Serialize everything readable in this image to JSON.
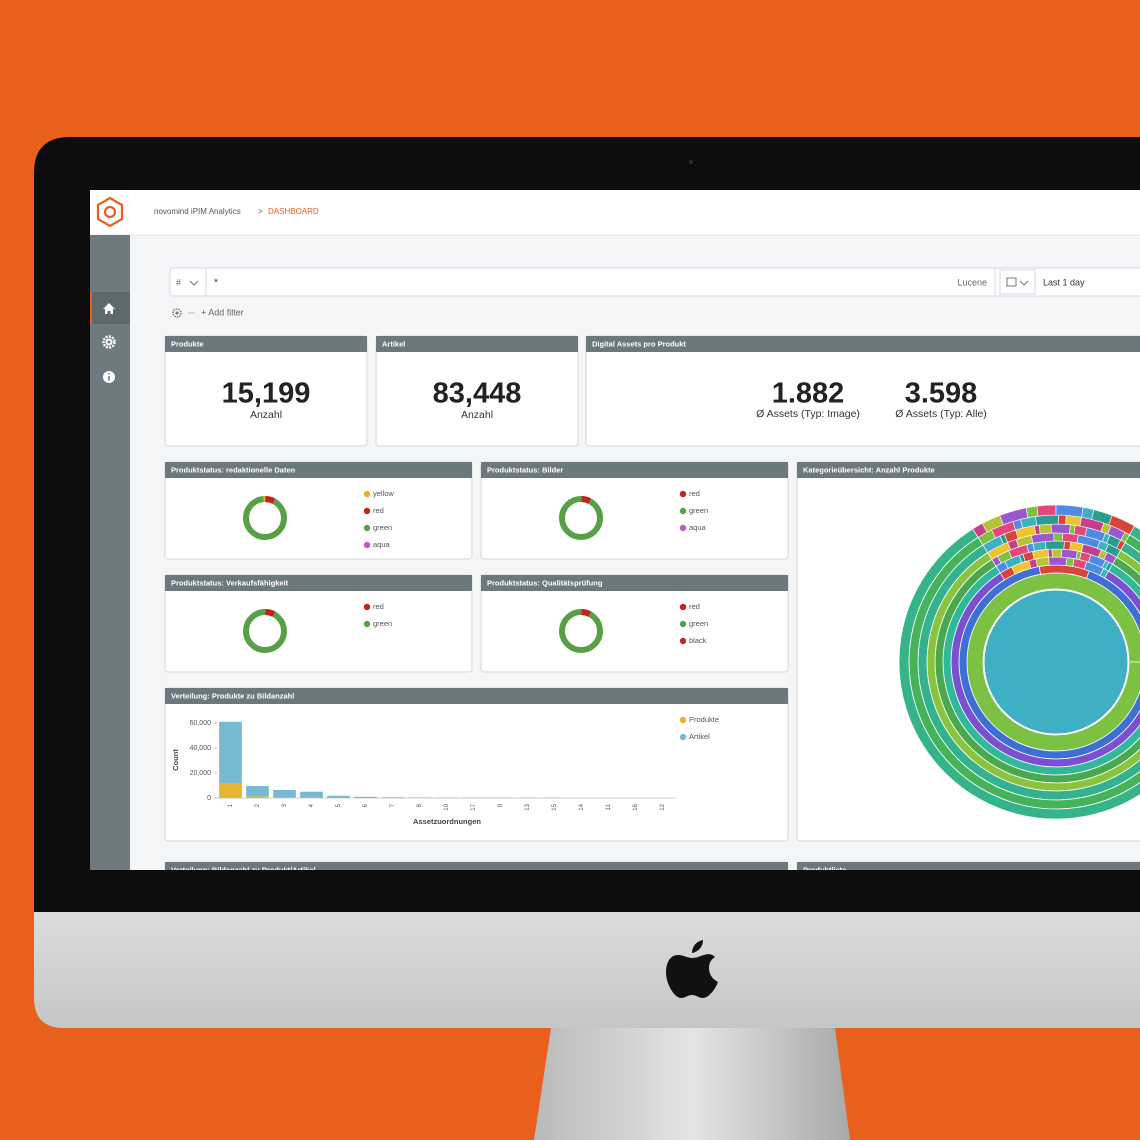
{
  "header": {
    "app": "novomind iPIM Analytics",
    "separator": ">",
    "page": "DASHBOARD"
  },
  "search": {
    "field_type": "#",
    "query": "*",
    "language": "Lucene",
    "time_range": "Last 1 day",
    "add_filter": "+ Add filter"
  },
  "metrics": [
    {
      "title": "Produkte",
      "value": "15,199",
      "label": "Anzahl"
    },
    {
      "title": "Artikel",
      "value": "83,448",
      "label": "Anzahl"
    }
  ],
  "assets": {
    "title": "Digital Assets pro Produkt",
    "metrics": [
      {
        "value": "1.882",
        "label": "Ø Assets (Typ: Image)"
      },
      {
        "value": "3.598",
        "label": "Ø Assets (Typ: Alle)"
      }
    ]
  },
  "status_panels": [
    {
      "title": "Produktstatus: redaktionelle Daten",
      "legend": [
        {
          "label": "yellow",
          "color": "#e6b422"
        },
        {
          "label": "red",
          "color": "#c8201e"
        },
        {
          "label": "green",
          "color": "#58a046"
        },
        {
          "label": "aqua",
          "color": "#c656c9"
        }
      ]
    },
    {
      "title": "Produktstatus: Bilder",
      "legend": [
        {
          "label": "red",
          "color": "#c8201e"
        },
        {
          "label": "green",
          "color": "#58a046"
        },
        {
          "label": "aqua",
          "color": "#c656c9"
        }
      ]
    },
    {
      "title": "Produktstatus: Verkaufsfähigkeit",
      "legend": [
        {
          "label": "red",
          "color": "#c8201e"
        },
        {
          "label": "green",
          "color": "#58a046"
        }
      ]
    },
    {
      "title": "Produktstatus: Qualitätsprüfung",
      "legend": [
        {
          "label": "red",
          "color": "#c8201e"
        },
        {
          "label": "green",
          "color": "#58a046"
        },
        {
          "label": "black",
          "color": "#a83434"
        }
      ]
    }
  ],
  "chart_data": {
    "type": "bar",
    "title": "Verteilung: Produkte zu Bildanzahl",
    "stacked": true,
    "categories": [
      "1",
      "2",
      "3",
      "4",
      "5",
      "6",
      "7",
      "8",
      "10",
      "17",
      "9",
      "13",
      "15",
      "14",
      "11",
      "16",
      "12"
    ],
    "series": [
      {
        "name": "Produkte",
        "color": "#e7b52f",
        "values": [
          12000,
          1300,
          800,
          400,
          200,
          100,
          60,
          40,
          30,
          20,
          15,
          10,
          8,
          6,
          5,
          4,
          3
        ]
      },
      {
        "name": "Artikel",
        "color": "#76b9d2",
        "values": [
          49000,
          8300,
          5600,
          4600,
          1600,
          900,
          500,
          400,
          300,
          250,
          200,
          150,
          120,
          100,
          80,
          60,
          50
        ]
      }
    ],
    "ylim": [
      0,
      65000
    ],
    "yticks": [
      0,
      {
        "value": 20000,
        "label": "20,000"
      },
      {
        "value": 40000,
        "label": "40,000"
      },
      {
        "value": 60000,
        "label": "60,000"
      }
    ],
    "xlabel": "Assetzuordnungen",
    "ylabel": "Count"
  },
  "sunburst": {
    "title": "Kategorieübersicht: Anzahl Produkte"
  },
  "bottom_panels": [
    {
      "title": "Verteilung: Bildanzahl zu Produkt/Artikel"
    },
    {
      "title": "Produktliste"
    }
  ]
}
